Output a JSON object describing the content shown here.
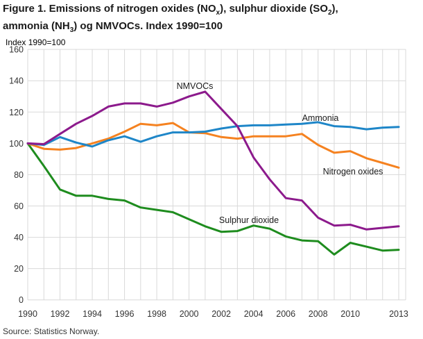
{
  "title": {
    "line1_parts": [
      {
        "text": "Figure 1. Emissions of nitrogen oxides (NO",
        "sub": false
      },
      {
        "text": "x",
        "sub": true
      },
      {
        "text": "), sulphur dioxide (SO",
        "sub": false
      },
      {
        "text": "2",
        "sub": true
      },
      {
        "text": "),",
        "sub": false
      }
    ],
    "line2_parts": [
      {
        "text": "ammonia (NH",
        "sub": false
      },
      {
        "text": "3",
        "sub": true
      },
      {
        "text": ") og NMVOCs. Index 1990=100",
        "sub": false
      }
    ]
  },
  "y_axis_title": "Index 1990=100",
  "source": "Source: Statistics Norway.",
  "colors": {
    "gridline": "#d9d9d9",
    "tick_text": "#333333",
    "annotation_text": "#1a1a1a"
  },
  "chart_data": {
    "type": "line",
    "x": [
      1990,
      1991,
      1992,
      1993,
      1994,
      1995,
      1996,
      1997,
      1998,
      1999,
      2000,
      2001,
      2002,
      2003,
      2004,
      2005,
      2006,
      2007,
      2008,
      2009,
      2010,
      2011,
      2012,
      2013
    ],
    "x_tick_labels": [
      "1990",
      "1992",
      "1994",
      "1996",
      "1998",
      "2000",
      "2002",
      "2004",
      "2006",
      "2008",
      "2010",
      "2013"
    ],
    "x_tick_values": [
      1990,
      1992,
      1994,
      1996,
      1998,
      2000,
      2002,
      2004,
      2006,
      2008,
      2010,
      2013
    ],
    "ylim": [
      0,
      160
    ],
    "y_ticks": [
      0,
      20,
      40,
      60,
      80,
      100,
      120,
      140,
      160
    ],
    "grid": true,
    "legend_position": "inline-labels",
    "series": [
      {
        "name": "NMVOCs",
        "color": "#8C1A8C",
        "values": [
          100,
          99.5,
          106,
          112.5,
          117.5,
          123.5,
          125.5,
          125.5,
          123.5,
          126,
          130,
          133,
          122,
          111,
          91,
          77,
          65,
          63.5,
          52.5,
          47.5,
          48,
          45,
          46,
          47
        ]
      },
      {
        "name": "Ammonia",
        "color": "#1E86C8",
        "values": [
          100,
          99,
          104,
          100.5,
          98,
          102,
          104.5,
          101,
          104.5,
          107,
          107,
          107.5,
          109.5,
          111,
          111.5,
          111.5,
          112,
          112.5,
          113.5,
          111,
          110.5,
          109,
          110,
          110.5
        ]
      },
      {
        "name": "Nitrogen oxides",
        "color": "#F58220",
        "values": [
          100,
          96.5,
          96,
          97,
          100,
          103,
          107.5,
          112.5,
          111.5,
          113,
          107,
          106.5,
          104,
          103,
          104.5,
          104.5,
          104.5,
          106,
          99,
          94,
          95,
          90.5,
          87.5,
          84.5
        ]
      },
      {
        "name": "Sulphur dioxide",
        "color": "#1E8C1E",
        "values": [
          100,
          85.5,
          70.5,
          66.5,
          66.5,
          64.5,
          63.5,
          59,
          57.5,
          56,
          51.5,
          47,
          43.5,
          44,
          47.5,
          45.5,
          40.5,
          38,
          37.5,
          29,
          36.5,
          34,
          31.5,
          32
        ]
      }
    ]
  }
}
